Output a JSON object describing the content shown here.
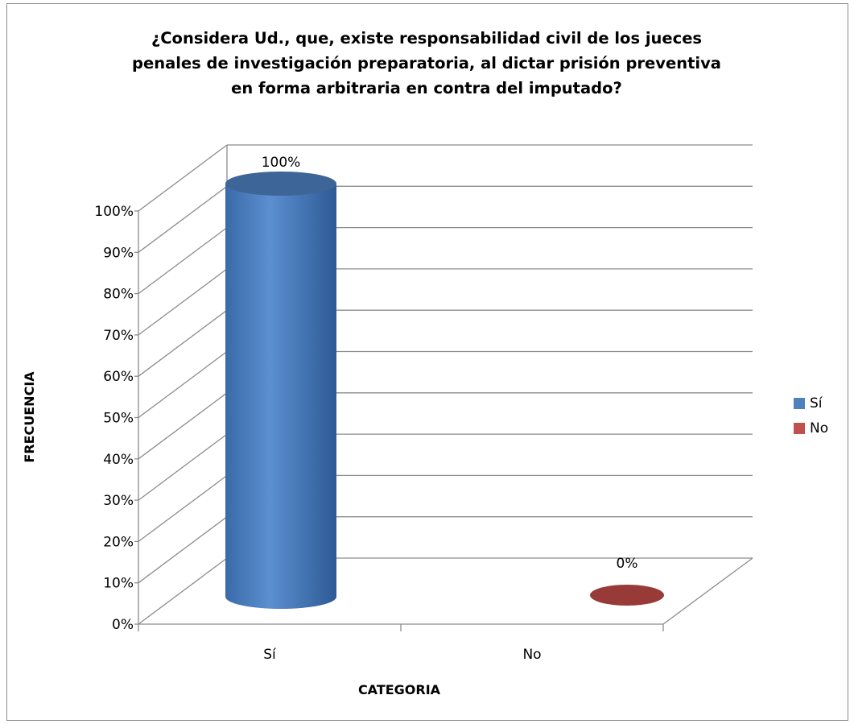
{
  "chart_data": {
    "type": "bar",
    "title_lines": [
      "¿Considera Ud., que, existe responsabilidad civil de los jueces",
      "penales de investigación preparatoria, al dictar prisión preventiva",
      "en forma arbitraria en contra del imputado?"
    ],
    "xlabel": "CATEGORIA",
    "ylabel": "FRECUENCIA",
    "categories": [
      "Sí",
      "No"
    ],
    "values": [
      100,
      0
    ],
    "data_labels": [
      "100%",
      "0%"
    ],
    "colors": [
      "#4f81bd",
      "#c0504d"
    ],
    "ylim": [
      0,
      100
    ],
    "yticks": [
      "0%",
      "10%",
      "20%",
      "30%",
      "40%",
      "50%",
      "60%",
      "70%",
      "80%",
      "90%",
      "100%"
    ],
    "grid": true,
    "style": "3d-cylinder",
    "legend": {
      "position": "right",
      "entries": [
        "Sí",
        "No"
      ]
    }
  }
}
